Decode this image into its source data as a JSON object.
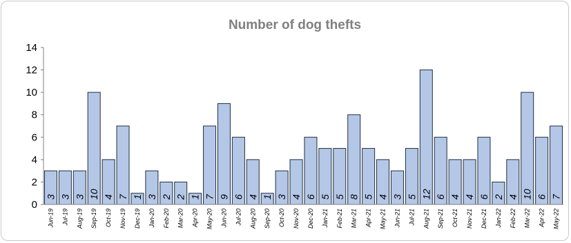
{
  "chart_data": {
    "type": "bar",
    "title": "Number of dog thefts",
    "xlabel": "",
    "ylabel": "",
    "ylim": [
      0,
      14
    ],
    "yticks": [
      0,
      2,
      4,
      6,
      8,
      10,
      12,
      14
    ],
    "grid": false,
    "legend": "none",
    "bar_color": "#b4c7e7",
    "bar_edge_color": "#1f2d3d",
    "categories": [
      "Jun-19",
      "Jul-19",
      "Aug-19",
      "Sep-19",
      "Oct-19",
      "Nov-19",
      "Dec-19",
      "Jan-20",
      "Feb-20",
      "Mar-20",
      "Apr-20",
      "May-20",
      "Jun-20",
      "Jul-20",
      "Aug-20",
      "Sep-20",
      "Oct-20",
      "Nov-20",
      "Dec-20",
      "Jan-21",
      "Feb-21",
      "Mar-21",
      "Apr-21",
      "May-21",
      "Jun-21",
      "Jul-21",
      "Aug-21",
      "Sep-21",
      "Oct-21",
      "Nov-21",
      "Dec-21",
      "Jan-22",
      "Feb-22",
      "Mar-22",
      "Apr-22",
      "May-22"
    ],
    "values": [
      3,
      3,
      3,
      10,
      4,
      7,
      1,
      3,
      2,
      2,
      1,
      7,
      9,
      6,
      4,
      1,
      3,
      4,
      6,
      5,
      5,
      8,
      5,
      4,
      3,
      5,
      12,
      6,
      4,
      4,
      6,
      2,
      4,
      10,
      6,
      7
    ]
  }
}
